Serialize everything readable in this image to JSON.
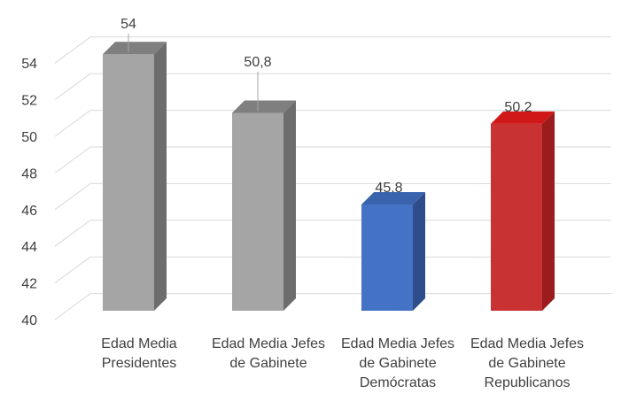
{
  "chart_data": {
    "type": "bar",
    "categories": [
      [
        "Edad Media",
        "Presidentes"
      ],
      [
        "Edad Media Jefes",
        "de Gabinete"
      ],
      [
        "Edad Media Jefes",
        "de Gabinete",
        "Demócratas"
      ],
      [
        "Edad Media Jefes",
        "de Gabinete",
        "Republicanos"
      ]
    ],
    "values": [
      54,
      50.8,
      45.8,
      50.2
    ],
    "data_labels": [
      "54",
      "50,8",
      "45.8",
      "50.2"
    ],
    "yticks": [
      "40",
      "42",
      "44",
      "46",
      "48",
      "50",
      "52",
      "54"
    ],
    "ylim": [
      40,
      54
    ],
    "grid": true,
    "style": "3d-column",
    "colors": {
      "front": [
        "#a5a5a5",
        "#a5a5a5",
        "#4472c4",
        "#c83232"
      ],
      "side": [
        "#6d6d6d",
        "#6d6d6d",
        "#2d4e8a",
        "#9a1c1c"
      ],
      "top": [
        "#7f7f7f",
        "#7f7f7f",
        "#3a63ad",
        "#d01818"
      ],
      "grid": "#d9d9d9",
      "text": "#404040"
    }
  }
}
